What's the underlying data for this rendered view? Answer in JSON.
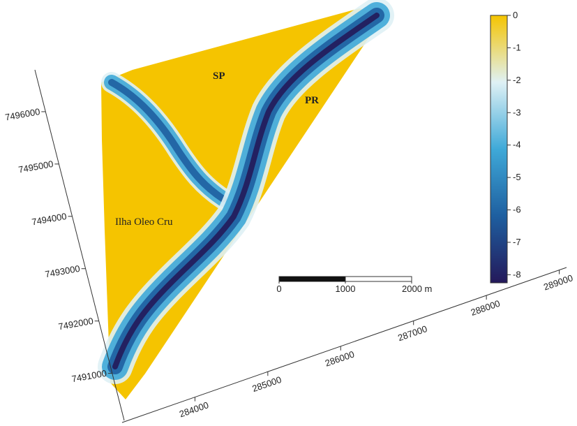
{
  "chart_data": {
    "type": "surface",
    "annotations": [
      "SP",
      "PR",
      "Ilha Oleo Cru"
    ],
    "xlim": [
      283000,
      289100
    ],
    "xticks": [
      284000,
      285000,
      286000,
      287000,
      288000,
      289000
    ],
    "ylim": [
      7490100,
      7496800
    ],
    "yticks": [
      7491000,
      7492000,
      7493000,
      7494000,
      7495000,
      7496000
    ],
    "colorbar": {
      "lim": [
        -8.25,
        0
      ],
      "ticks": [
        0,
        -1,
        -2,
        -3,
        -4,
        -5,
        -6,
        -7,
        -8
      ],
      "colors": [
        "#f5c400",
        "#dff1f5",
        "#3fa9d8",
        "#1e5fa0",
        "#24195a"
      ]
    },
    "scale_bar": {
      "lim": [
        0,
        2000
      ],
      "ticks": [
        0,
        1000,
        {
          "value": 2000,
          "label": "2000 m"
        }
      ]
    }
  }
}
